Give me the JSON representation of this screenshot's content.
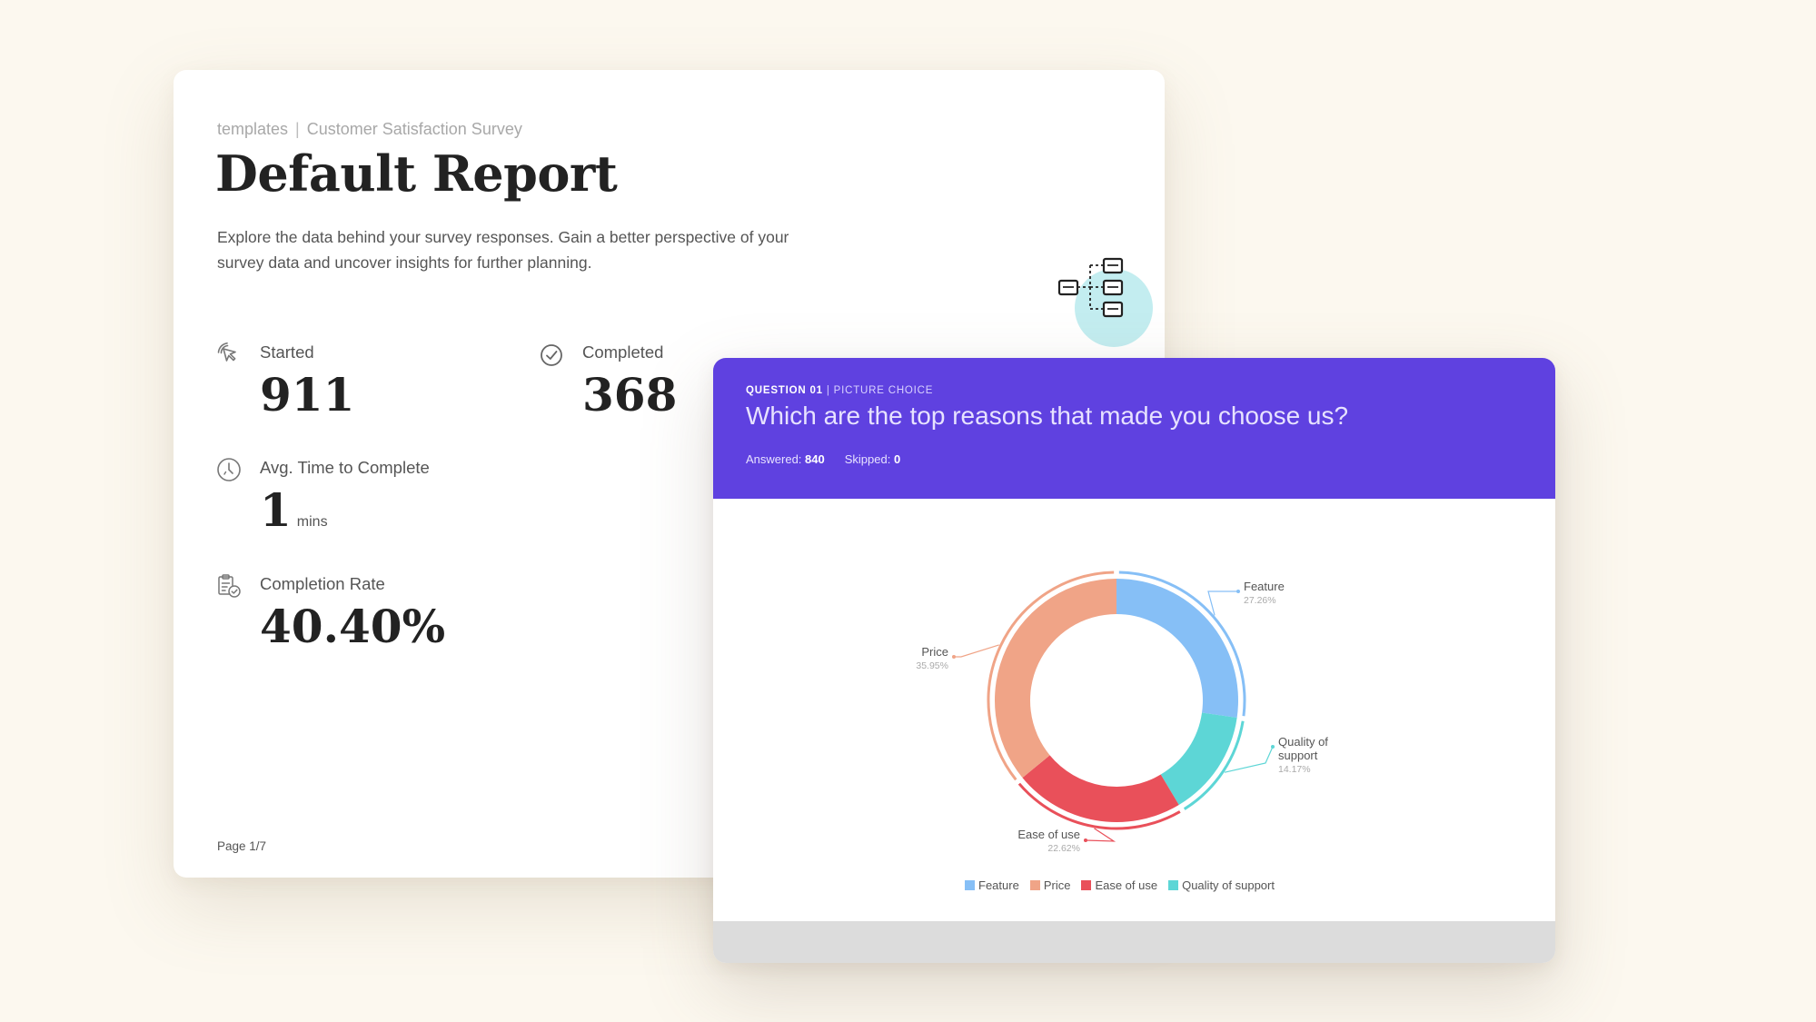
{
  "report": {
    "breadcrumb_parent": "templates",
    "breadcrumb_separator": "|",
    "breadcrumb_current": "Customer Satisfaction Survey",
    "title": "Default Report",
    "description": "Explore the data behind your survey responses. Gain a better perspective of your survey data and uncover insights for further planning.",
    "stats": {
      "started": {
        "label": "Started",
        "value": "911",
        "icon": "cursor-click-icon"
      },
      "completed": {
        "label": "Completed",
        "value": "368",
        "icon": "check-circle-icon"
      },
      "avg_time": {
        "label": "Avg. Time to Complete",
        "value": "1",
        "unit": "mins",
        "icon": "clock-icon"
      },
      "completion_rate": {
        "label": "Completion Rate",
        "value": "40.40%",
        "icon": "clipboard-check-icon"
      }
    },
    "page_indicator": "Page 1/7",
    "badge_icon": "flow-diagram-icon"
  },
  "question": {
    "kicker_number": "QUESTION 01",
    "kicker_separator": "|",
    "kicker_type": "PICTURE CHOICE",
    "title": "Which are the top reasons that made you choose us?",
    "answered_label": "Answered:",
    "answered_value": "840",
    "skipped_label": "Skipped:",
    "skipped_value": "0",
    "header_color": "#5f41e0"
  },
  "chart_data": {
    "type": "pie",
    "style": "donut",
    "categories": [
      "Feature",
      "Quality of support",
      "Ease of use",
      "Price"
    ],
    "values": [
      27.26,
      14.17,
      22.62,
      35.95
    ],
    "value_labels": [
      "27.26%",
      "14.17%",
      "22.62%",
      "35.95%"
    ],
    "colors": [
      "#86bff6",
      "#5dd6d6",
      "#e9505a",
      "#f0a487"
    ],
    "label_lines": [
      [
        "Quality of",
        "support"
      ]
    ],
    "legend": {
      "position": "bottom",
      "entries": [
        "Feature",
        "Price",
        "Ease of use",
        "Quality of support"
      ],
      "colors": [
        "#86bff6",
        "#f0a487",
        "#e9505a",
        "#5dd6d6"
      ]
    }
  }
}
